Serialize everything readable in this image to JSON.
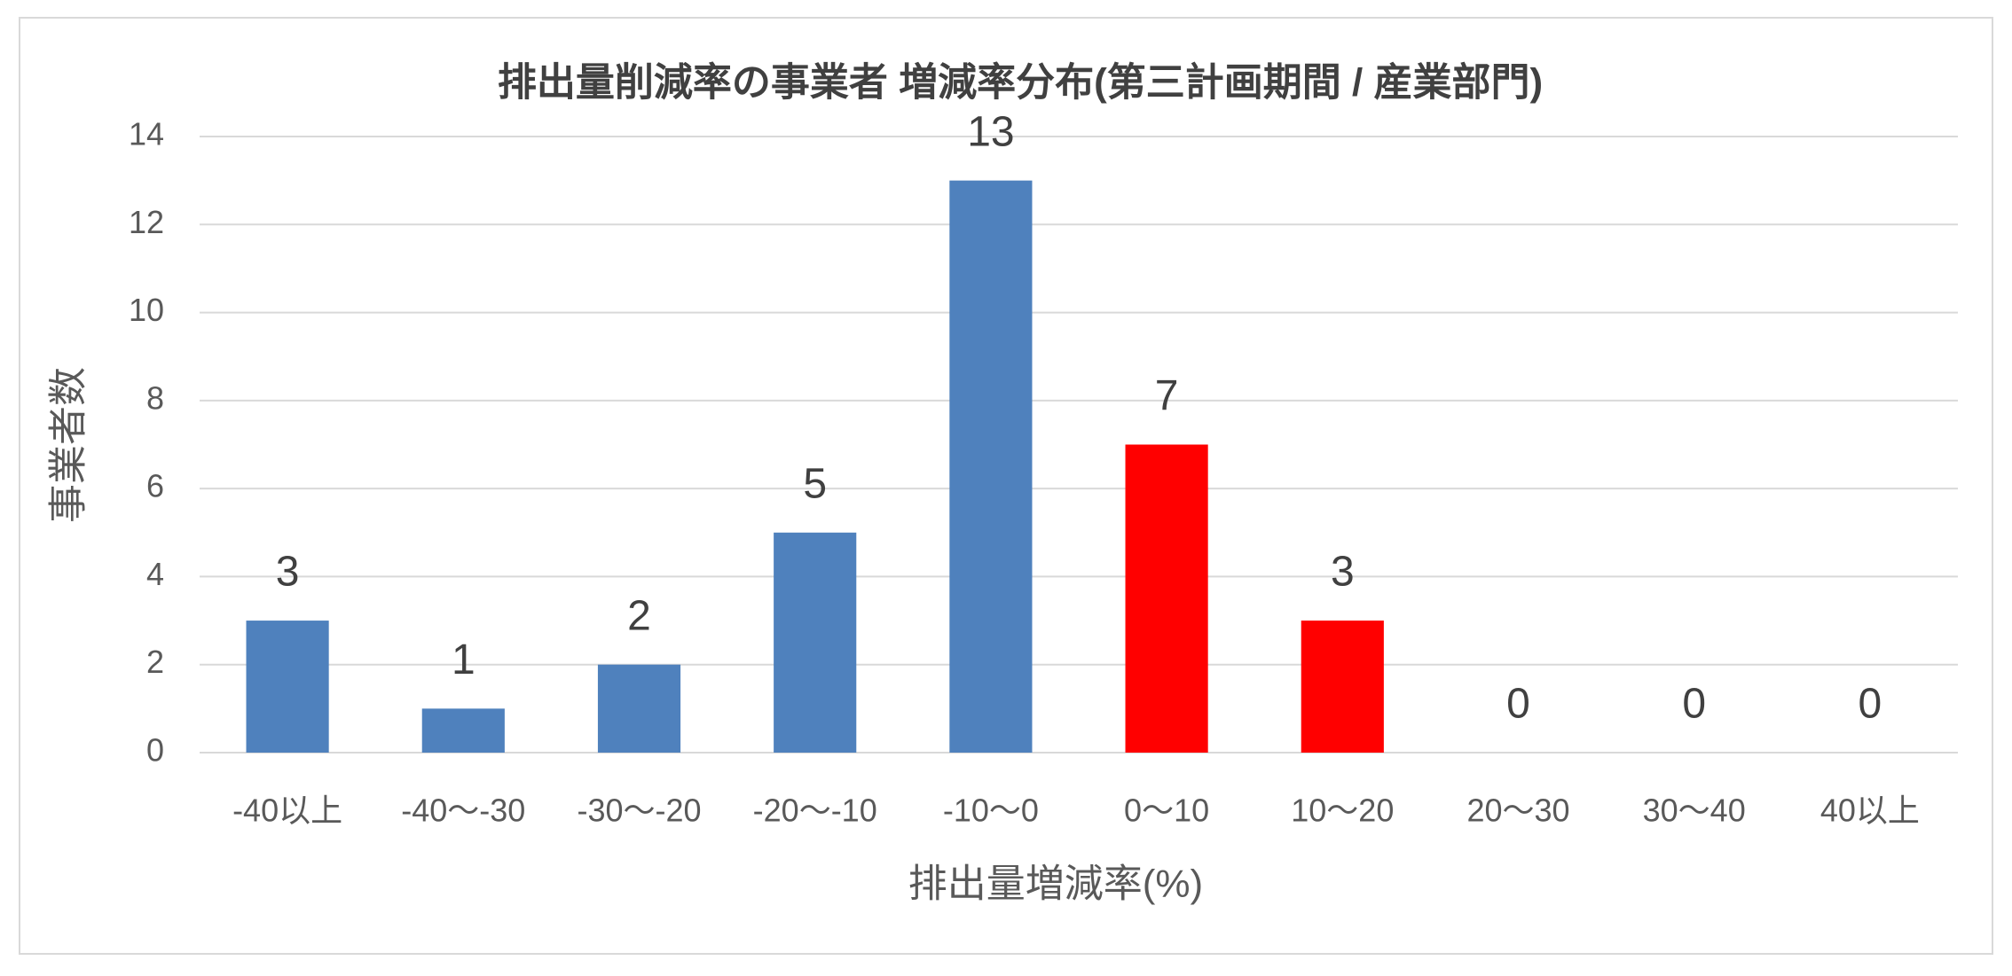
{
  "chart_data": {
    "type": "bar",
    "title": "排出量削減率の事業者 増減率分布(第三計画期間 / 産業部門)",
    "x_label": "排出量増減率(%)",
    "y_label": "事業者数",
    "categories": [
      "-40以上",
      "-40〜-30",
      "-30〜-20",
      "-20〜-10",
      "-10〜0",
      "0〜10",
      "10〜20",
      "20〜30",
      "30〜40",
      "40以上"
    ],
    "values": [
      3,
      1,
      2,
      5,
      13,
      7,
      3,
      0,
      0,
      0
    ],
    "colors": [
      "#4f81bd",
      "#4f81bd",
      "#4f81bd",
      "#4f81bd",
      "#4f81bd",
      "#ff0000",
      "#ff0000",
      "#4f81bd",
      "#4f81bd",
      "#4f81bd"
    ],
    "ylim": [
      0,
      14
    ],
    "yticks": [
      0,
      2,
      4,
      6,
      8,
      10,
      12,
      14
    ],
    "grid": true
  }
}
